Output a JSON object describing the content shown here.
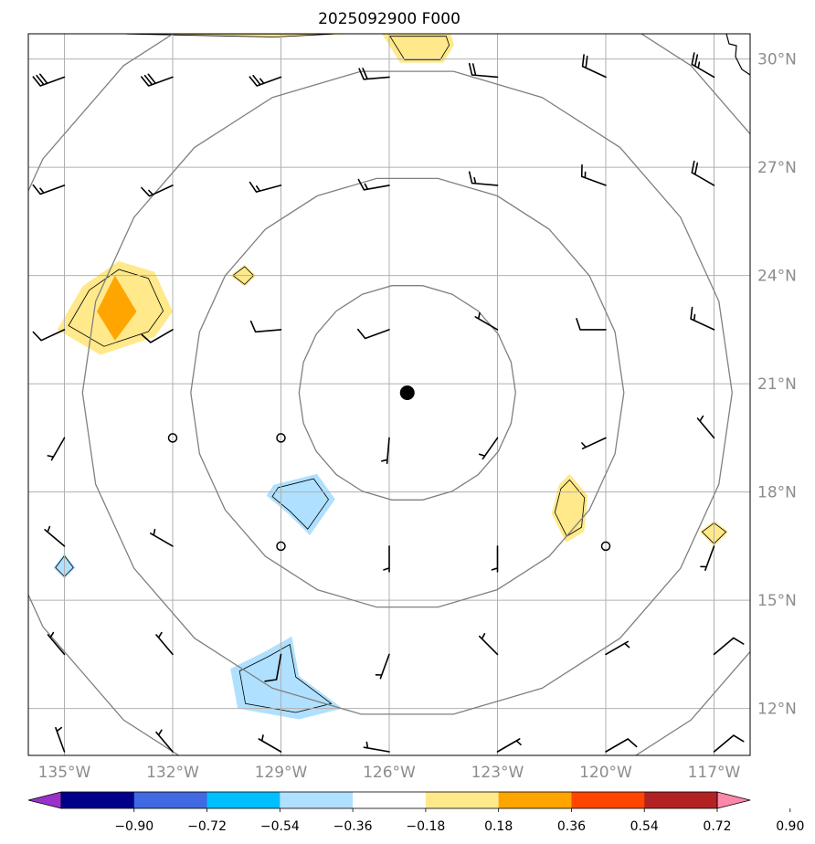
{
  "title": "2025092900 F000",
  "map": {
    "lon_range": [
      -136,
      -116
    ],
    "lat_range": [
      10.7,
      30.7
    ],
    "lon_labels": [
      "135°W",
      "132°W",
      "129°W",
      "126°W",
      "123°W",
      "120°W",
      "117°W"
    ],
    "lat_labels": [
      "30°N",
      "27°N",
      "24°N",
      "21°N",
      "18°N",
      "15°N",
      "12°N"
    ],
    "gridline_color": "#b0b0b0",
    "center_marker": {
      "lon": -125.5,
      "lat": 20.75
    },
    "range_rings_deg": [
      3,
      6,
      9,
      12
    ],
    "ring_color": "#808080"
  },
  "colorbar": {
    "tick_labels": [
      "−0.90",
      "−0.72",
      "−0.54",
      "−0.36",
      "−0.18",
      "0.18",
      "0.36",
      "0.54",
      "0.72",
      "0.90"
    ],
    "colors": [
      "#9932cc",
      "#00008b",
      "#4169e1",
      "#00bfff",
      "#b0e0ff",
      "#ffffff",
      "#ffe98a",
      "#ffa500",
      "#ff4500",
      "#b22222",
      "#ff88aa"
    ]
  },
  "shaded_regions": [
    {
      "level": "0.18 to 0.36",
      "color": "#ffe98a",
      "lonlat": [
        [
          -134.5,
          23.7
        ],
        [
          -133.5,
          24.4
        ],
        [
          -132.5,
          24.1
        ],
        [
          -132.0,
          23.0
        ],
        [
          -132.5,
          22.3
        ],
        [
          -134.0,
          21.8
        ],
        [
          -135.2,
          22.5
        ]
      ]
    },
    {
      "level": "0.36 to 0.54",
      "color": "#ffa500",
      "lonlat": [
        [
          -133.6,
          24.0
        ],
        [
          -133.0,
          23.0
        ],
        [
          -133.6,
          22.2
        ],
        [
          -134.1,
          23.0
        ]
      ]
    },
    {
      "level": "0.18 to 0.36",
      "color": "#ffe98a",
      "lonlat": [
        [
          -130.4,
          24.0
        ],
        [
          -130.0,
          23.7
        ],
        [
          -129.7,
          24.0
        ],
        [
          -130.0,
          24.3
        ]
      ]
    },
    {
      "level": "0.18 to 0.36",
      "color": "#ffe98a",
      "lonlat": [
        [
          -134.0,
          30.7
        ],
        [
          -129.0,
          30.6
        ],
        [
          -127.0,
          30.7
        ]
      ]
    },
    {
      "level": "0.18 to 0.36",
      "color": "#ffe98a",
      "lonlat": [
        [
          -126.2,
          30.7
        ],
        [
          -125.7,
          29.9
        ],
        [
          -124.5,
          29.9
        ],
        [
          -124.2,
          30.4
        ],
        [
          -124.3,
          30.7
        ]
      ]
    },
    {
      "level": "0.18 to 0.36",
      "color": "#ffe98a",
      "lonlat": [
        [
          -121.0,
          18.5
        ],
        [
          -120.5,
          17.9
        ],
        [
          -120.6,
          16.9
        ],
        [
          -121.1,
          16.6
        ],
        [
          -121.5,
          17.4
        ],
        [
          -121.3,
          18.2
        ]
      ]
    },
    {
      "level": "0.18 to 0.36",
      "color": "#ffe98a",
      "lonlat": [
        [
          -117.0,
          17.2
        ],
        [
          -116.6,
          16.9
        ],
        [
          -117.0,
          16.5
        ],
        [
          -117.4,
          16.9
        ]
      ]
    },
    {
      "level": "-0.36 to -0.18",
      "color": "#b0e0ff",
      "lonlat": [
        [
          -129.2,
          18.2
        ],
        [
          -128.0,
          18.5
        ],
        [
          -127.5,
          17.8
        ],
        [
          -128.2,
          16.8
        ],
        [
          -128.8,
          17.4
        ],
        [
          -129.4,
          17.9
        ]
      ]
    },
    {
      "level": "-0.36 to -0.18",
      "color": "#b0e0ff",
      "lonlat": [
        [
          -135.0,
          16.3
        ],
        [
          -134.7,
          15.9
        ],
        [
          -135.0,
          15.6
        ],
        [
          -135.3,
          15.9
        ]
      ]
    },
    {
      "level": "-0.36 to -0.18",
      "color": "#b0e0ff",
      "lonlat": [
        [
          -129.4,
          13.6
        ],
        [
          -128.7,
          14.0
        ],
        [
          -128.5,
          12.9
        ],
        [
          -127.3,
          12.0
        ],
        [
          -128.5,
          11.7
        ],
        [
          -130.2,
          12.0
        ],
        [
          -130.4,
          13.1
        ]
      ]
    }
  ],
  "winds": [
    {
      "lon": -135,
      "lat": 29.5,
      "dir": 250,
      "spd": 30
    },
    {
      "lon": -132,
      "lat": 29.5,
      "dir": 250,
      "spd": 30
    },
    {
      "lon": -129,
      "lat": 29.5,
      "dir": 250,
      "spd": 25
    },
    {
      "lon": -126,
      "lat": 29.5,
      "dir": 265,
      "spd": 20
    },
    {
      "lon": -123,
      "lat": 29.5,
      "dir": 275,
      "spd": 20
    },
    {
      "lon": -120,
      "lat": 29.5,
      "dir": 295,
      "spd": 20
    },
    {
      "lon": -117,
      "lat": 29.5,
      "dir": 300,
      "spd": 25
    },
    {
      "lon": -135,
      "lat": 26.5,
      "dir": 250,
      "spd": 15
    },
    {
      "lon": -132,
      "lat": 26.5,
      "dir": 245,
      "spd": 15
    },
    {
      "lon": -129,
      "lat": 26.5,
      "dir": 255,
      "spd": 15
    },
    {
      "lon": -126,
      "lat": 26.5,
      "dir": 260,
      "spd": 15
    },
    {
      "lon": -123,
      "lat": 26.5,
      "dir": 275,
      "spd": 15
    },
    {
      "lon": -120,
      "lat": 26.5,
      "dir": 290,
      "spd": 15
    },
    {
      "lon": -117,
      "lat": 26.5,
      "dir": 300,
      "spd": 20
    },
    {
      "lon": -135,
      "lat": 22.5,
      "dir": 245,
      "spd": 10
    },
    {
      "lon": -132,
      "lat": 22.5,
      "dir": 240,
      "spd": 10
    },
    {
      "lon": -129,
      "lat": 22.5,
      "dir": 265,
      "spd": 10
    },
    {
      "lon": -126,
      "lat": 22.5,
      "dir": 250,
      "spd": 10
    },
    {
      "lon": -123,
      "lat": 22.5,
      "dir": 300,
      "spd": 5
    },
    {
      "lon": -120,
      "lat": 22.5,
      "dir": 270,
      "spd": 10
    },
    {
      "lon": -117,
      "lat": 22.5,
      "dir": 295,
      "spd": 15
    },
    {
      "lon": -135,
      "lat": 19.5,
      "dir": 210,
      "spd": 5
    },
    {
      "lon": -132,
      "lat": 19.5,
      "calm": true
    },
    {
      "lon": -129,
      "lat": 19.5,
      "calm": true
    },
    {
      "lon": -126,
      "lat": 19.5,
      "dir": 185,
      "spd": 5
    },
    {
      "lon": -123,
      "lat": 19.5,
      "dir": 215,
      "spd": 5
    },
    {
      "lon": -120,
      "lat": 19.5,
      "dir": 245,
      "spd": 5
    },
    {
      "lon": -117,
      "lat": 19.5,
      "dir": 320,
      "spd": 5
    },
    {
      "lon": -135,
      "lat": 16.5,
      "dir": 310,
      "spd": 5
    },
    {
      "lon": -132,
      "lat": 16.5,
      "dir": 300,
      "spd": 5
    },
    {
      "lon": -129,
      "lat": 16.5,
      "calm": true
    },
    {
      "lon": -126,
      "lat": 16.5,
      "dir": 180,
      "spd": 5
    },
    {
      "lon": -123,
      "lat": 16.5,
      "dir": 180,
      "spd": 5
    },
    {
      "lon": -120,
      "lat": 16.5,
      "calm": true
    },
    {
      "lon": -117,
      "lat": 16.5,
      "dir": 200,
      "spd": 5
    },
    {
      "lon": -135,
      "lat": 13.5,
      "dir": 320,
      "spd": 5
    },
    {
      "lon": -132,
      "lat": 13.5,
      "dir": 320,
      "spd": 5
    },
    {
      "lon": -129,
      "lat": 13.5,
      "dir": 190,
      "spd": 10
    },
    {
      "lon": -126,
      "lat": 13.5,
      "dir": 200,
      "spd": 5
    },
    {
      "lon": -123,
      "lat": 13.5,
      "dir": 315,
      "spd": 5
    },
    {
      "lon": -120,
      "lat": 13.5,
      "dir": 60,
      "spd": 5
    },
    {
      "lon": -117,
      "lat": 13.5,
      "dir": 50,
      "spd": 10
    },
    {
      "lon": -135,
      "lat": 10.8,
      "dir": 340,
      "spd": 5
    },
    {
      "lon": -132,
      "lat": 10.8,
      "dir": 320,
      "spd": 5
    },
    {
      "lon": -129,
      "lat": 10.8,
      "dir": 300,
      "spd": 5
    },
    {
      "lon": -126,
      "lat": 10.8,
      "dir": 280,
      "spd": 5
    },
    {
      "lon": -123,
      "lat": 10.8,
      "dir": 60,
      "spd": 5
    },
    {
      "lon": -120,
      "lat": 10.8,
      "dir": 60,
      "spd": 10
    },
    {
      "lon": -117,
      "lat": 10.8,
      "dir": 50,
      "spd": 10
    }
  ]
}
